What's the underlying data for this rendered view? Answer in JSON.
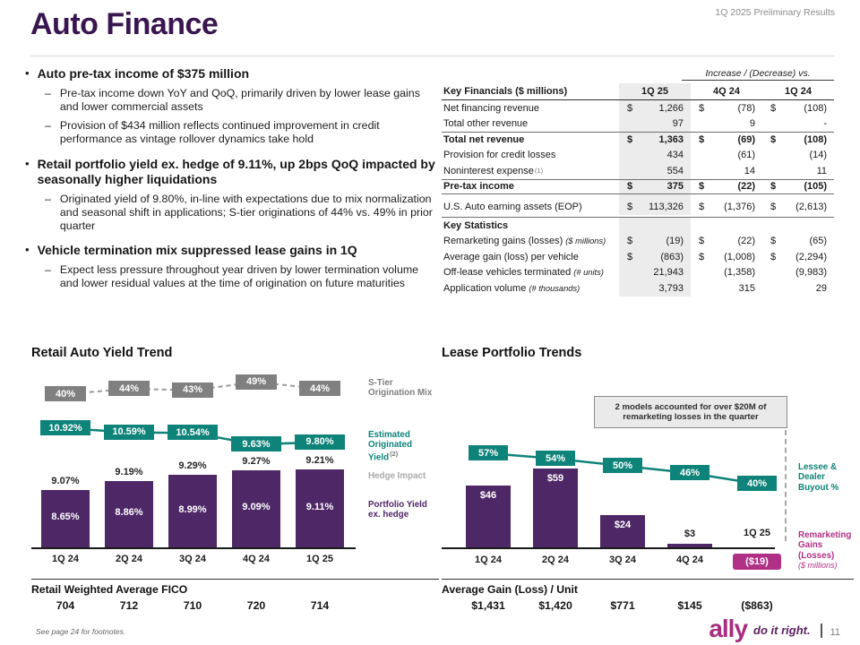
{
  "meta": {
    "header_right": "1Q 2025 Preliminary Results",
    "footnote": "See page 24 for footnotes.",
    "page_number": "11",
    "logo": {
      "brand": "ally",
      "tagline": "do it right."
    }
  },
  "title": "Auto Finance",
  "colors": {
    "plum": "#3a1650",
    "bar_purple": "#4e2766",
    "teal": "#0e837a",
    "magenta": "#b03086",
    "gray_box": "#808080",
    "table_shade": "#ececec"
  },
  "bullets": [
    {
      "text": "Auto pre-tax income of $375 million",
      "subs": [
        "Pre-tax income down YoY and QoQ, primarily driven by lower lease gains and lower commercial assets",
        "Provision of $434 million reflects continued improvement in credit performance as vintage rollover dynamics take hold"
      ]
    },
    {
      "text": "Retail portfolio yield ex. hedge of 9.11%, up 2bps QoQ impacted by seasonally higher liquidations",
      "subs": [
        "Originated yield of 9.80%, in-line with expectations due to mix normalization and seasonal shift in applications; S-tier originations of 44% vs. 49% in prior quarter"
      ]
    },
    {
      "text": "Vehicle termination mix suppressed lease gains in 1Q",
      "subs": [
        "Expect less pressure throughout year driven by lower termination volume and lower residual values at the time of origination on future maturities"
      ]
    }
  ],
  "table": {
    "increase_note": "Increase / (Decrease) vs.",
    "header": {
      "label": "Key Financials  ($ millions)",
      "cols": [
        "1Q 25",
        "4Q 24",
        "1Q 24"
      ]
    },
    "rows": [
      {
        "label": "Net financing revenue",
        "d": [
          "$",
          "$",
          "$"
        ],
        "v": [
          "1,266",
          "(78)",
          "(108)"
        ]
      },
      {
        "label": "Total other revenue",
        "v": [
          "97",
          "9",
          "-"
        ]
      },
      {
        "label": "Total net revenue",
        "bold": true,
        "line_top": true,
        "d": [
          "$",
          "$",
          "$"
        ],
        "v": [
          "1,363",
          "(69)",
          "(108)"
        ]
      },
      {
        "label": "Provision for credit losses",
        "v": [
          "434",
          "(61)",
          "(14)"
        ]
      },
      {
        "label": "Noninterest expense",
        "sup": "(1)",
        "v": [
          "554",
          "14",
          "11"
        ]
      },
      {
        "label": "Pre-tax income",
        "bold": true,
        "line_top": true,
        "line_bot": true,
        "d": [
          "$",
          "$",
          "$"
        ],
        "v": [
          "375",
          "(22)",
          "(105)"
        ]
      },
      {
        "label": "U.S. Auto earning assets (EOP)",
        "gap_before": true,
        "d": [
          "$",
          "$",
          "$"
        ],
        "v": [
          "113,326",
          "(1,376)",
          "(2,613)"
        ]
      }
    ],
    "stats_header": "Key Statistics",
    "stats_rows": [
      {
        "label": "Remarketing gains (losses)",
        "note": "($ millions)",
        "d": [
          "$",
          "$",
          "$"
        ],
        "v": [
          "(19)",
          "(22)",
          "(65)"
        ]
      },
      {
        "label": "Average gain (loss) per vehicle",
        "d": [
          "$",
          "$",
          "$"
        ],
        "v": [
          "(863)",
          "(1,008)",
          "(2,294)"
        ]
      },
      {
        "label": "Off-lease vehicles terminated",
        "note": "(# units)",
        "v": [
          "21,943",
          "(1,358)",
          "(9,983)"
        ]
      },
      {
        "label": "Application volume",
        "note": "(# thousands)",
        "v": [
          "3,793",
          "315",
          "29"
        ]
      }
    ]
  },
  "chart_data": [
    {
      "type": "bar",
      "title": "Retail Auto Yield Trend",
      "categories": [
        "1Q 24",
        "2Q 24",
        "3Q 24",
        "4Q 24",
        "1Q 25"
      ],
      "series": [
        {
          "name": "S-Tier Origination Mix",
          "style": "dashed-line-gray",
          "values": [
            40,
            44,
            43,
            49,
            44
          ],
          "labels": [
            "40%",
            "44%",
            "43%",
            "49%",
            "44%"
          ]
        },
        {
          "name": "Estimated Originated Yield",
          "sup": "(2)",
          "style": "line-teal",
          "values": [
            10.92,
            10.59,
            10.54,
            9.63,
            9.8
          ],
          "labels": [
            "10.92%",
            "10.59%",
            "10.54%",
            "9.63%",
            "9.80%"
          ]
        },
        {
          "name": "Hedge Impact",
          "style": "label-above-bar",
          "values": [
            9.07,
            9.19,
            9.29,
            9.27,
            9.21
          ],
          "labels": [
            "9.07%",
            "9.19%",
            "9.29%",
            "9.27%",
            "9.21%"
          ]
        },
        {
          "name": "Portfolio Yield ex. hedge",
          "style": "bar-purple",
          "values": [
            8.65,
            8.86,
            8.99,
            9.09,
            9.11
          ],
          "labels": [
            "8.65%",
            "8.86%",
            "8.99%",
            "9.09%",
            "9.11%"
          ]
        }
      ],
      "fico": {
        "label": "Retail Weighted Average FICO",
        "values": [
          "704",
          "712",
          "710",
          "720",
          "714"
        ]
      }
    },
    {
      "type": "bar",
      "title": "Lease Portfolio Trends",
      "categories": [
        "1Q 24",
        "2Q 24",
        "3Q 24",
        "4Q 24",
        "1Q 25"
      ],
      "callout": "2 models accounted for over $20M of remarketing losses in the quarter",
      "series": [
        {
          "name": "Lessee & Dealer Buyout %",
          "style": "line-teal",
          "values": [
            57,
            54,
            50,
            46,
            40
          ],
          "labels": [
            "57%",
            "54%",
            "50%",
            "46%",
            "40%"
          ]
        },
        {
          "name": "Remarketing Gains (Losses)",
          "note": "($ millions)",
          "style": "bar-purple",
          "values": [
            46,
            59,
            24,
            3,
            -19
          ],
          "labels": [
            "$46",
            "$59",
            "$24",
            "$3",
            "($19)"
          ]
        }
      ],
      "avg_gain": {
        "label": "Average Gain (Loss) / Unit",
        "values": [
          "$1,431",
          "$1,420",
          "$771",
          "$145",
          "($863)"
        ]
      }
    }
  ]
}
